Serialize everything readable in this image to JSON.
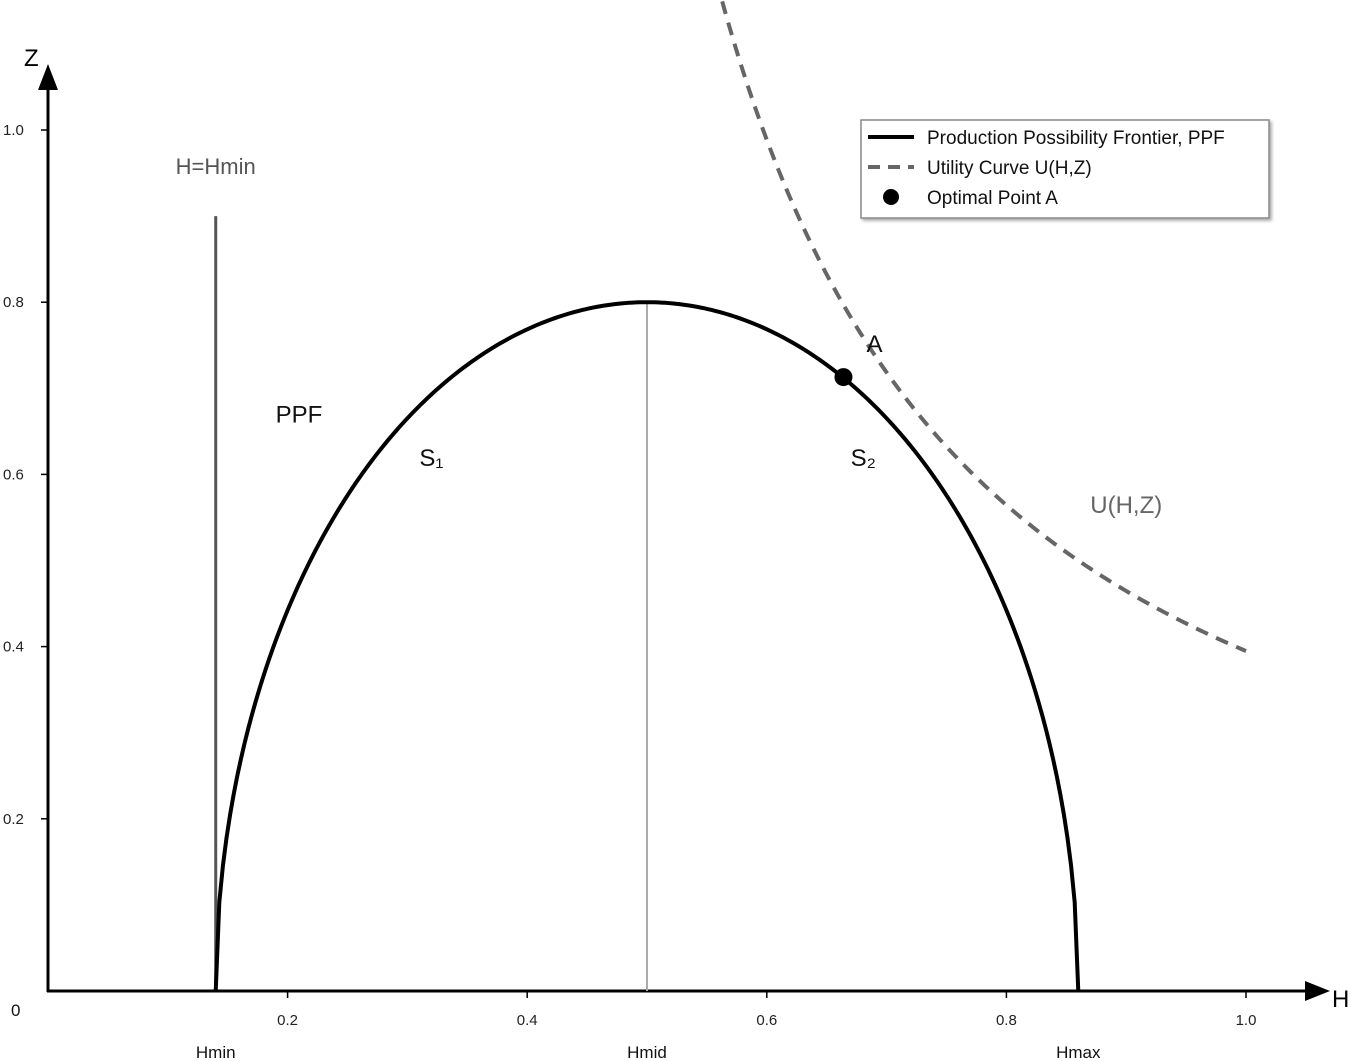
{
  "chart_data": {
    "type": "line",
    "xlabel": "H",
    "ylabel": "Z",
    "xlim": [
      0,
      1.05
    ],
    "ylim": [
      0,
      1.08
    ],
    "origin_label": "0",
    "x_ticks": [
      {
        "value": 0.2,
        "label": "0.2"
      },
      {
        "value": 0.4,
        "label": "0.4"
      },
      {
        "value": 0.6,
        "label": "0.6"
      },
      {
        "value": 0.8,
        "label": "0.8"
      },
      {
        "value": 1.0,
        "label": "1.0"
      }
    ],
    "y_ticks": [
      {
        "value": 0.2,
        "label": "0.2"
      },
      {
        "value": 0.4,
        "label": "0.4"
      },
      {
        "value": 0.6,
        "label": "0.6"
      },
      {
        "value": 0.8,
        "label": "0.8"
      },
      {
        "value": 1.0,
        "label": "1.0"
      }
    ],
    "x_markers": [
      {
        "value": 0.14,
        "label": "Hmin"
      },
      {
        "value": 0.5,
        "label": "Hmid"
      },
      {
        "value": 0.86,
        "label": "Hmax"
      }
    ],
    "ppf": {
      "hmin": 0.14,
      "hmid": 0.5,
      "hmax": 0.86,
      "zmax": 0.8,
      "color": "#000000"
    },
    "hmin_line": {
      "x": 0.14,
      "y_top": 0.9,
      "label": "H=Hmin",
      "color": "#555555"
    },
    "hmid_line": {
      "x": 0.5,
      "y_top": 0.8,
      "color": "#aaaaaa"
    },
    "utility": {
      "a": 0.76,
      "b": 2.89,
      "c": 0.68,
      "x_start": 0.35,
      "x_end": 1.0,
      "label": "U(H,Z)",
      "color": "#666666"
    },
    "optimal_point": {
      "x": 0.664,
      "y": 0.713,
      "label": "A",
      "color": "#000000"
    },
    "annotations": {
      "ppf_label": {
        "text": "PPF",
        "x": 0.19,
        "y": 0.66
      },
      "s1": {
        "text": "S₁",
        "x": 0.31,
        "y": 0.61
      },
      "s2": {
        "text": "S₂",
        "x": 0.67,
        "y": 0.61
      }
    },
    "legend": {
      "position": "top-right",
      "entries": [
        {
          "label": "Production Possibility Frontier, PPF",
          "marker": "solid-line"
        },
        {
          "label": "Utility Curve U(H,Z)",
          "marker": "dashed-line"
        },
        {
          "label": "Optimal Point A",
          "marker": "dot"
        }
      ]
    }
  }
}
